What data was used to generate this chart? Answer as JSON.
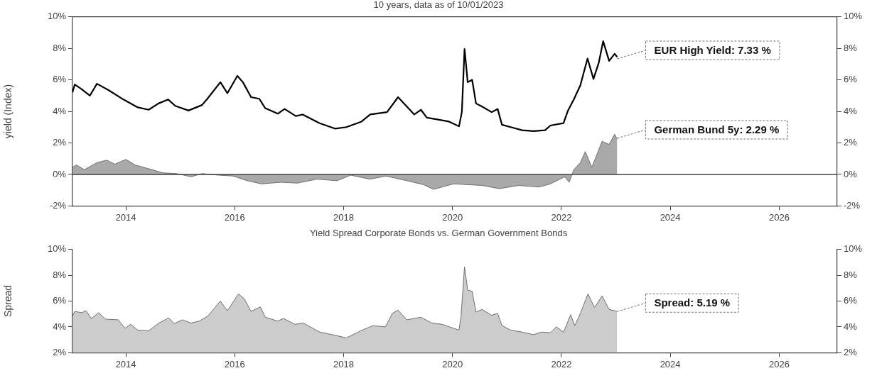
{
  "chart_data": [
    {
      "type": "line",
      "subtitle": "10 years, data as of 10/01/2023",
      "ylabel": "yield (Index)",
      "xlim": [
        "2013-01-08",
        "2027-01-25"
      ],
      "xticks": [
        "2014",
        "2016",
        "2018",
        "2020",
        "2022",
        "2024",
        "2026"
      ],
      "ylim": [
        -2,
        10
      ],
      "yticks": [
        {
          "value": -2,
          "label": "-2%"
        },
        {
          "value": 0,
          "label": "0%"
        },
        {
          "value": 2,
          "label": "2%"
        },
        {
          "value": 4,
          "label": "4%"
        },
        {
          "value": 6,
          "label": "6%"
        },
        {
          "value": 8,
          "label": "8%"
        },
        {
          "value": 10,
          "label": "10%"
        }
      ],
      "y2lim": [
        -2,
        10
      ],
      "y2ticks": [
        {
          "value": -2,
          "label": "-2%"
        },
        {
          "value": 0,
          "label": "0%"
        },
        {
          "value": 2,
          "label": "2%"
        },
        {
          "value": 4,
          "label": "4%"
        },
        {
          "value": 6,
          "label": "6%"
        },
        {
          "value": 8,
          "label": "8%"
        },
        {
          "value": 10,
          "label": "10%"
        }
      ],
      "ref_lines": [
        {
          "axis": "y",
          "value": 0,
          "color": "#404040"
        }
      ],
      "series": [
        {
          "type": "area",
          "color": "#a9a9a9",
          "x": [
            "2013-01-08",
            "2013-02-03",
            "2013-03-29",
            "2013-06-21",
            "2013-08-26",
            "2013-10-19",
            "2014-01-01",
            "2014-03-04",
            "2014-05-19",
            "2014-09-06",
            "2014-12-09",
            "2015-03-14",
            "2015-05-27",
            "2015-09-17",
            "2015-12-20",
            "2016-03-25",
            "2016-06-28",
            "2016-11-06",
            "2017-02-25",
            "2017-07-06",
            "2017-11-17",
            "2018-02-17",
            "2018-06-28",
            "2018-10-12",
            "2019-03-01",
            "2019-06-21",
            "2019-08-26",
            "2020-01-08",
            "2020-07-17",
            "2020-11-10",
            "2021-03-22",
            "2021-08-04",
            "2021-10-19",
            "2022-01-23",
            "2022-02-22",
            "2022-03-25",
            "2022-05-08",
            "2022-06-10",
            "2022-07-24",
            "2022-10-01",
            "2022-11-17",
            "2022-12-24",
            "2023-01-10"
          ],
          "values": [
            0.45,
            0.6,
            0.3,
            0.75,
            0.9,
            0.65,
            0.95,
            0.6,
            0.4,
            0.1,
            0.05,
            -0.15,
            0.05,
            -0.05,
            -0.1,
            -0.4,
            -0.6,
            -0.5,
            -0.55,
            -0.3,
            -0.4,
            -0.05,
            -0.3,
            -0.1,
            -0.4,
            -0.65,
            -0.95,
            -0.6,
            -0.7,
            -0.9,
            -0.7,
            -0.8,
            -0.6,
            -0.15,
            -0.5,
            0.3,
            0.75,
            1.45,
            0.45,
            2.1,
            1.9,
            2.55,
            2.25
          ]
        },
        {
          "color": "#000000",
          "x": [
            "2013-01-08",
            "2013-01-23",
            "2013-03-11",
            "2013-05-05",
            "2013-06-21",
            "2013-09-06",
            "2013-12-16",
            "2014-03-22",
            "2014-06-03",
            "2014-08-08",
            "2014-10-12",
            "2014-11-28",
            "2015-02-25",
            "2015-05-27",
            "2015-07-02",
            "2015-09-27",
            "2015-11-13",
            "2016-01-19",
            "2016-02-25",
            "2016-04-20",
            "2016-06-14",
            "2016-07-24",
            "2016-10-16",
            "2016-12-01",
            "2017-02-14",
            "2017-04-01",
            "2017-07-24",
            "2017-11-06",
            "2018-01-19",
            "2018-05-01",
            "2018-06-28",
            "2018-10-19",
            "2019-01-01",
            "2019-04-20",
            "2019-06-03",
            "2019-07-13",
            "2019-09-13",
            "2019-12-09",
            "2020-02-14",
            "2020-03-04",
            "2020-03-22",
            "2020-04-01",
            "2020-04-12",
            "2020-05-12",
            "2020-06-07",
            "2020-07-17",
            "2020-09-20",
            "2020-10-30",
            "2020-11-28",
            "2021-01-26",
            "2021-04-12",
            "2021-06-28",
            "2021-09-13",
            "2021-10-19",
            "2022-01-15",
            "2022-02-14",
            "2022-03-25",
            "2022-05-08",
            "2022-06-25",
            "2022-08-04",
            "2022-09-09",
            "2022-10-08",
            "2022-11-17",
            "2022-12-24",
            "2023-01-10"
          ],
          "values": [
            5.2,
            5.7,
            5.4,
            5.0,
            5.75,
            5.35,
            4.75,
            4.25,
            4.1,
            4.5,
            4.75,
            4.35,
            4.05,
            4.4,
            4.8,
            5.85,
            5.15,
            6.25,
            5.85,
            4.9,
            4.8,
            4.2,
            3.85,
            4.15,
            3.7,
            3.8,
            3.25,
            2.9,
            3.0,
            3.35,
            3.8,
            3.95,
            4.9,
            3.8,
            4.1,
            3.6,
            3.5,
            3.35,
            3.05,
            3.95,
            7.95,
            7.0,
            5.85,
            6.0,
            4.5,
            4.3,
            3.95,
            4.15,
            3.15,
            3.0,
            2.8,
            2.75,
            2.8,
            3.1,
            3.25,
            4.05,
            4.75,
            5.65,
            7.35,
            6.05,
            7.1,
            8.45,
            7.2,
            7.65,
            7.45
          ]
        }
      ],
      "annotations": [
        {
          "text": "EUR High Yield: 7.33 %",
          "x": "2023-01-10",
          "y": 7.33
        },
        {
          "text": "German Bund 5y: 2.29 %",
          "x": "2023-01-10",
          "y": 2.29
        }
      ]
    },
    {
      "type": "area",
      "title": "Yield Spread Corporate Bonds vs. German Government Bonds",
      "ylabel": "Spread",
      "xlim": [
        "2013-01-08",
        "2027-01-25"
      ],
      "xticks": [
        "2014",
        "2016",
        "2018",
        "2020",
        "2022",
        "2024",
        "2026"
      ],
      "ylim": [
        2,
        10
      ],
      "yticks": [
        {
          "value": 2,
          "label": "2%"
        },
        {
          "value": 4,
          "label": "4%"
        },
        {
          "value": 6,
          "label": "6%"
        },
        {
          "value": 8,
          "label": "8%"
        },
        {
          "value": 10,
          "label": "10%"
        }
      ],
      "y2lim": [
        2,
        10
      ],
      "y2ticks": [
        {
          "value": 2,
          "label": "2%"
        },
        {
          "value": 4,
          "label": "4%"
        },
        {
          "value": 6,
          "label": "6%"
        },
        {
          "value": 8,
          "label": "8%"
        },
        {
          "value": 10,
          "label": "10%"
        }
      ],
      "series": [
        {
          "color": "#cccccc",
          "x": [
            "2013-01-08",
            "2013-01-23",
            "2013-03-11",
            "2013-04-08",
            "2013-05-15",
            "2013-07-02",
            "2013-08-18",
            "2013-11-10",
            "2013-12-27",
            "2014-02-03",
            "2014-03-22",
            "2014-06-03",
            "2014-08-11",
            "2014-10-16",
            "2014-11-21",
            "2015-01-15",
            "2015-03-14",
            "2015-05-08",
            "2015-07-06",
            "2015-09-27",
            "2015-11-13",
            "2016-01-26",
            "2016-03-04",
            "2016-04-20",
            "2016-06-21",
            "2016-07-24",
            "2016-10-16",
            "2016-11-24",
            "2017-02-07",
            "2017-04-05",
            "2017-07-24",
            "2017-11-06",
            "2018-01-19",
            "2018-05-05",
            "2018-07-17",
            "2018-10-08",
            "2018-11-24",
            "2019-01-01",
            "2019-03-01",
            "2019-06-03",
            "2019-08-15",
            "2019-10-23",
            "2020-02-14",
            "2020-02-28",
            "2020-03-22",
            "2020-04-12",
            "2020-05-12",
            "2020-06-07",
            "2020-07-17",
            "2020-09-20",
            "2020-10-30",
            "2020-11-28",
            "2021-01-26",
            "2021-04-12",
            "2021-06-28",
            "2021-08-22",
            "2021-10-19",
            "2021-11-28",
            "2022-01-15",
            "2022-03-04",
            "2022-04-01",
            "2022-05-08",
            "2022-06-28",
            "2022-08-11",
            "2022-10-01",
            "2022-11-17",
            "2023-01-10"
          ],
          "values": [
            4.85,
            5.2,
            5.1,
            5.25,
            4.65,
            5.1,
            4.6,
            4.55,
            3.9,
            4.2,
            3.75,
            3.7,
            4.3,
            4.7,
            4.25,
            4.55,
            4.3,
            4.45,
            4.85,
            6.0,
            5.25,
            6.55,
            6.2,
            5.2,
            5.55,
            4.75,
            4.45,
            4.65,
            4.2,
            4.3,
            3.6,
            3.35,
            3.15,
            3.75,
            4.1,
            4.0,
            5.05,
            5.3,
            4.55,
            4.75,
            4.3,
            4.2,
            3.75,
            4.9,
            8.65,
            6.85,
            6.75,
            5.15,
            5.35,
            4.9,
            5.05,
            4.1,
            3.75,
            3.6,
            3.4,
            3.6,
            3.55,
            4.0,
            3.6,
            4.95,
            4.1,
            5.05,
            6.55,
            5.5,
            6.4,
            5.35,
            5.2
          ]
        }
      ],
      "annotations": [
        {
          "text": "Spread: 5.19 %",
          "x": "2023-01-10",
          "y": 5.19
        }
      ]
    }
  ]
}
